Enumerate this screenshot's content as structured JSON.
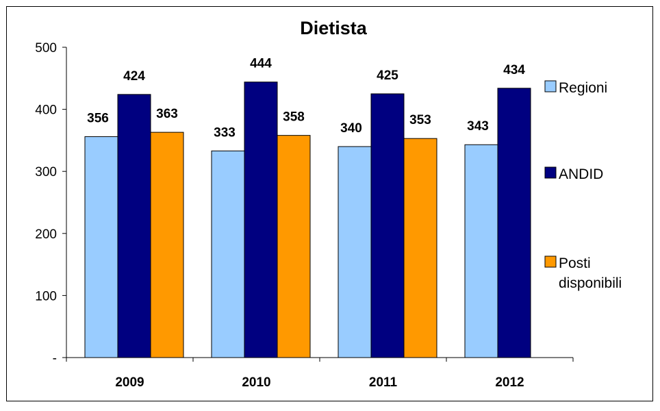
{
  "chart_data": {
    "type": "bar",
    "title": "Dietista",
    "categories": [
      "2009",
      "2010",
      "2011",
      "2012"
    ],
    "series": [
      {
        "name": "Regioni",
        "values": [
          356,
          333,
          340,
          343
        ],
        "color": "#99CCFF"
      },
      {
        "name": "ANDID",
        "values": [
          424,
          444,
          425,
          434
        ],
        "color": "#000080"
      },
      {
        "name": "Posti disponibili",
        "values": [
          363,
          358,
          353,
          null
        ],
        "color": "#FF9900"
      }
    ],
    "ylim": [
      0,
      500
    ],
    "yticks": [
      "-",
      "100",
      "200",
      "300",
      "400",
      "500"
    ],
    "grid": false,
    "legend_position": "right"
  }
}
